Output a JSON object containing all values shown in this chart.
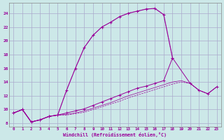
{
  "xlabel": "Windchill (Refroidissement éolien,°C)",
  "bg_color": "#cce8e8",
  "grid_color": "#aaaacc",
  "line_color": "#990099",
  "xlim": [
    -0.5,
    23.5
  ],
  "ylim": [
    7.5,
    25.5
  ],
  "xticks": [
    0,
    1,
    2,
    3,
    4,
    5,
    6,
    7,
    8,
    9,
    10,
    11,
    12,
    13,
    14,
    15,
    16,
    17,
    18,
    19,
    20,
    21,
    22,
    23
  ],
  "yticks": [
    8,
    10,
    12,
    14,
    16,
    18,
    20,
    22,
    24
  ],
  "curve1_x": [
    0,
    1,
    2,
    3,
    4,
    5,
    6,
    7,
    8,
    9,
    10,
    11,
    12,
    13,
    14,
    15,
    16,
    17,
    18
  ],
  "curve1_y": [
    9.5,
    10.0,
    8.2,
    8.5,
    9.0,
    9.2,
    12.8,
    16.0,
    19.0,
    20.8,
    22.0,
    22.7,
    23.5,
    24.0,
    24.3,
    24.6,
    24.7,
    23.8,
    17.5
  ],
  "curve2_x": [
    0,
    1,
    2,
    3,
    4,
    5,
    6,
    7,
    8,
    9,
    10,
    11,
    12,
    13,
    14,
    15,
    16,
    17,
    18,
    20,
    21,
    22,
    23
  ],
  "curve2_y": [
    9.5,
    10.0,
    8.2,
    8.5,
    9.0,
    9.2,
    9.5,
    9.8,
    10.1,
    10.6,
    11.1,
    11.6,
    12.1,
    12.6,
    13.1,
    13.4,
    13.8,
    14.2,
    17.5,
    13.8,
    12.8,
    12.3,
    13.3
  ],
  "curve3_x": [
    0,
    1,
    2,
    3,
    4,
    5,
    6,
    7,
    8,
    9,
    10,
    11,
    12,
    13,
    14,
    15,
    16,
    17,
    18,
    19,
    20,
    21,
    22,
    23
  ],
  "curve3_y": [
    9.5,
    10.0,
    8.2,
    8.5,
    9.0,
    9.2,
    9.3,
    9.5,
    9.8,
    10.2,
    10.6,
    11.0,
    11.5,
    12.0,
    12.4,
    12.8,
    13.2,
    13.6,
    14.0,
    14.2,
    13.8,
    12.8,
    12.3,
    13.3
  ],
  "curve4_x": [
    0,
    1,
    2,
    3,
    4,
    5,
    6,
    7,
    8,
    9,
    10,
    11,
    12,
    13,
    14,
    15,
    16,
    17,
    18,
    19,
    20,
    21,
    22,
    23
  ],
  "curve4_y": [
    9.5,
    10.0,
    8.2,
    8.5,
    9.0,
    9.2,
    9.2,
    9.4,
    9.6,
    10.0,
    10.4,
    10.8,
    11.2,
    11.7,
    12.1,
    12.5,
    12.9,
    13.3,
    13.7,
    14.0,
    13.8,
    12.8,
    12.3,
    13.3
  ],
  "thin_x": [
    0,
    1,
    2,
    3,
    4,
    5,
    6,
    7,
    8,
    9,
    10,
    11,
    12,
    13,
    14,
    15,
    16,
    17,
    18
  ],
  "thin_y": [
    9.5,
    10.0,
    8.2,
    8.5,
    9.0,
    9.2,
    12.8,
    16.0,
    19.0,
    20.8,
    22.0,
    22.7,
    23.5,
    24.0,
    24.3,
    24.6,
    24.7,
    23.8,
    17.5
  ]
}
